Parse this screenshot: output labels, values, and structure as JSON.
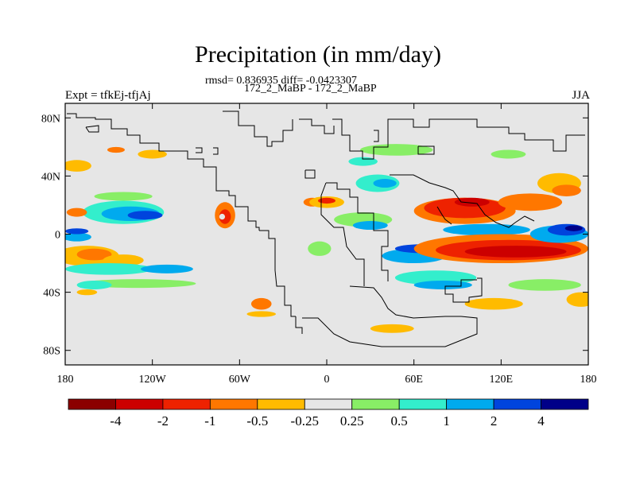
{
  "title": "Precipitation (in mm/day)",
  "stats_line": "rmsd= 0.836935 diff= -0.0423307",
  "subtitle": "172_2_MaBP - 172_2_MaBP",
  "expt_label": "Expt = tfkEj-tfjAj",
  "season": "JJA",
  "lat_ticks": [
    {
      "lat": 80,
      "label": "80N"
    },
    {
      "lat": 40,
      "label": "40N"
    },
    {
      "lat": 0,
      "label": "0"
    },
    {
      "lat": -40,
      "label": "40S"
    },
    {
      "lat": -80,
      "label": "80S"
    }
  ],
  "lon_ticks": [
    {
      "lon": -180,
      "label": "180"
    },
    {
      "lon": -120,
      "label": "120W"
    },
    {
      "lon": -60,
      "label": "60W"
    },
    {
      "lon": 0,
      "label": "0"
    },
    {
      "lon": 60,
      "label": "60E"
    },
    {
      "lon": 120,
      "label": "120E"
    },
    {
      "lon": 180,
      "label": "180"
    }
  ],
  "colorbar": {
    "colors": [
      "#8b0000",
      "#cc0000",
      "#ee2200",
      "#ff7700",
      "#ffbb00",
      "#e6e6e6",
      "#88ee66",
      "#33eecc",
      "#00aaee",
      "#0044dd",
      "#000088"
    ],
    "labels": [
      "-4",
      "-2",
      "-1",
      "-0.5",
      "-0.25",
      "0.25",
      "0.5",
      "1",
      "2",
      "4"
    ]
  },
  "fields": [
    {
      "lon": -165,
      "lat": -15,
      "rx": 22,
      "ry": 7,
      "c": 4
    },
    {
      "lon": -160,
      "lat": -14,
      "rx": 12,
      "ry": 4,
      "c": 3
    },
    {
      "lon": -140,
      "lat": -18,
      "rx": 14,
      "ry": 4,
      "c": 4
    },
    {
      "lon": -172,
      "lat": -2,
      "rx": 10,
      "ry": 3,
      "c": 8
    },
    {
      "lon": -172,
      "lat": 2,
      "rx": 8,
      "ry": 2,
      "c": 9
    },
    {
      "lon": -140,
      "lat": 15,
      "rx": 28,
      "ry": 8,
      "c": 7
    },
    {
      "lon": -135,
      "lat": 14,
      "rx": 20,
      "ry": 5,
      "c": 8
    },
    {
      "lon": -125,
      "lat": 13,
      "rx": 12,
      "ry": 3,
      "c": 9
    },
    {
      "lon": -140,
      "lat": 26,
      "rx": 20,
      "ry": 3,
      "c": 6
    },
    {
      "lon": -150,
      "lat": -24,
      "rx": 30,
      "ry": 4,
      "c": 7
    },
    {
      "lon": -110,
      "lat": -24,
      "rx": 18,
      "ry": 3,
      "c": 8
    },
    {
      "lon": -130,
      "lat": -34,
      "rx": 40,
      "ry": 3,
      "c": 6
    },
    {
      "lon": -160,
      "lat": -35,
      "rx": 12,
      "ry": 3,
      "c": 7
    },
    {
      "lon": -172,
      "lat": 47,
      "rx": 10,
      "ry": 4,
      "c": 4
    },
    {
      "lon": -145,
      "lat": 58,
      "rx": 6,
      "ry": 2,
      "c": 3
    },
    {
      "lon": -120,
      "lat": 55,
      "rx": 10,
      "ry": 3,
      "c": 4
    },
    {
      "lon": -172,
      "lat": 15,
      "rx": 7,
      "ry": 3,
      "c": 3
    },
    {
      "lon": -165,
      "lat": -40,
      "rx": 7,
      "ry": 2,
      "c": 4
    },
    {
      "lon": -70,
      "lat": 13,
      "rx": 7,
      "ry": 9,
      "c": 3
    },
    {
      "lon": -70,
      "lat": 12,
      "rx": 4,
      "ry": 5,
      "c": 2
    },
    {
      "lon": -72,
      "lat": 12,
      "rx": 2,
      "ry": 2,
      "c": 5
    },
    {
      "lon": -45,
      "lat": -48,
      "rx": 7,
      "ry": 4,
      "c": 3
    },
    {
      "lon": -10,
      "lat": 22,
      "rx": 6,
      "ry": 3,
      "c": 3
    },
    {
      "lon": -5,
      "lat": -10,
      "rx": 8,
      "ry": 5,
      "c": 6
    },
    {
      "lon": 0,
      "lat": 22,
      "rx": 12,
      "ry": 4,
      "c": 4
    },
    {
      "lon": 0,
      "lat": 23,
      "rx": 6,
      "ry": 2,
      "c": 2
    },
    {
      "lon": 25,
      "lat": 10,
      "rx": 20,
      "ry": 5,
      "c": 6
    },
    {
      "lon": 30,
      "lat": 6,
      "rx": 12,
      "ry": 3,
      "c": 8
    },
    {
      "lon": 35,
      "lat": 35,
      "rx": 15,
      "ry": 6,
      "c": 7
    },
    {
      "lon": 40,
      "lat": 35,
      "rx": 8,
      "ry": 3,
      "c": 8
    },
    {
      "lon": 48,
      "lat": 58,
      "rx": 25,
      "ry": 4,
      "c": 6
    },
    {
      "lon": 25,
      "lat": 50,
      "rx": 10,
      "ry": 3,
      "c": 7
    },
    {
      "lon": 60,
      "lat": -15,
      "rx": 22,
      "ry": 5,
      "c": 8
    },
    {
      "lon": 65,
      "lat": -10,
      "rx": 18,
      "ry": 3,
      "c": 9
    },
    {
      "lon": 75,
      "lat": -30,
      "rx": 28,
      "ry": 5,
      "c": 7
    },
    {
      "lon": 80,
      "lat": -35,
      "rx": 20,
      "ry": 3,
      "c": 8
    },
    {
      "lon": 95,
      "lat": 16,
      "rx": 35,
      "ry": 9,
      "c": 3
    },
    {
      "lon": 95,
      "lat": 18,
      "rx": 28,
      "ry": 7,
      "c": 2
    },
    {
      "lon": 100,
      "lat": 22,
      "rx": 12,
      "ry": 3,
      "c": 1
    },
    {
      "lon": 110,
      "lat": 3,
      "rx": 30,
      "ry": 4,
      "c": 8
    },
    {
      "lon": 120,
      "lat": -10,
      "rx": 60,
      "ry": 10,
      "c": 3
    },
    {
      "lon": 125,
      "lat": -11,
      "rx": 50,
      "ry": 7,
      "c": 2
    },
    {
      "lon": 130,
      "lat": -12,
      "rx": 35,
      "ry": 4,
      "c": 1
    },
    {
      "lon": 160,
      "lat": 0,
      "rx": 20,
      "ry": 6,
      "c": 8
    },
    {
      "lon": 165,
      "lat": 3,
      "rx": 13,
      "ry": 4,
      "c": 9
    },
    {
      "lon": 170,
      "lat": 4,
      "rx": 6,
      "ry": 2,
      "c": 10
    },
    {
      "lon": 140,
      "lat": 22,
      "rx": 22,
      "ry": 6,
      "c": 3
    },
    {
      "lon": 160,
      "lat": 35,
      "rx": 15,
      "ry": 7,
      "c": 4
    },
    {
      "lon": 165,
      "lat": 30,
      "rx": 10,
      "ry": 4,
      "c": 3
    },
    {
      "lon": 115,
      "lat": -48,
      "rx": 20,
      "ry": 4,
      "c": 4
    },
    {
      "lon": 150,
      "lat": -35,
      "rx": 25,
      "ry": 4,
      "c": 6
    },
    {
      "lon": 175,
      "lat": -45,
      "rx": 10,
      "ry": 5,
      "c": 4
    },
    {
      "lon": 45,
      "lat": -65,
      "rx": 15,
      "ry": 3,
      "c": 4
    },
    {
      "lon": 125,
      "lat": 55,
      "rx": 12,
      "ry": 3,
      "c": 6
    },
    {
      "lon": -45,
      "lat": -55,
      "rx": 10,
      "ry": 2,
      "c": 4
    }
  ]
}
